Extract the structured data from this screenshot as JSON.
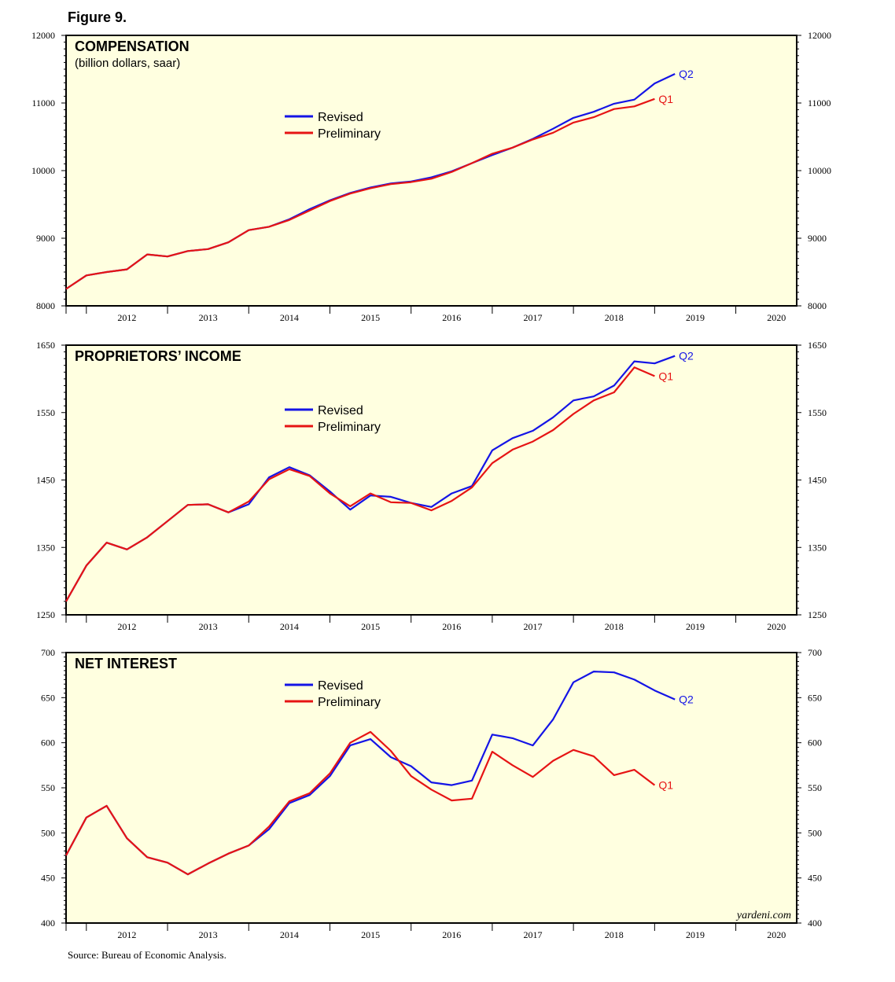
{
  "figure_title": "Figure 9.",
  "source": "Source: Bureau of Economic Analysis.",
  "watermark": "yardeni.com",
  "colors": {
    "revised": "#1414e6",
    "preliminary": "#e61414",
    "panel_bg": "#ffffe0"
  },
  "chart_data": [
    {
      "type": "line",
      "title": "COMPENSATION",
      "subtitle": "(billion dollars, saar)",
      "ylim": [
        8000,
        12000
      ],
      "yticks": [
        8000,
        9000,
        10000,
        11000,
        12000
      ],
      "x_range": [
        2011.75,
        2020.75
      ],
      "xtick_labels": [
        "2012",
        "2013",
        "2014",
        "2015",
        "2016",
        "2017",
        "2018",
        "2019",
        "2020"
      ],
      "legend": [
        "Revised",
        "Preliminary"
      ],
      "series": [
        {
          "name": "Revised",
          "end_label": "Q2",
          "x": [
            2011.75,
            2012,
            2012.25,
            2012.5,
            2012.75,
            2013,
            2013.25,
            2013.5,
            2013.75,
            2014,
            2014.25,
            2014.5,
            2014.75,
            2015,
            2015.25,
            2015.5,
            2015.75,
            2016,
            2016.25,
            2016.5,
            2016.75,
            2017,
            2017.25,
            2017.5,
            2017.75,
            2018,
            2018.25,
            2018.5,
            2018.75,
            2019,
            2019.25
          ],
          "values": [
            8250,
            8450,
            8500,
            8540,
            8760,
            8730,
            8810,
            8840,
            8940,
            9120,
            9170,
            9280,
            9430,
            9560,
            9670,
            9750,
            9810,
            9840,
            9900,
            9990,
            10110,
            10230,
            10340,
            10470,
            10620,
            10780,
            10870,
            10990,
            11050,
            11290,
            11430
          ]
        },
        {
          "name": "Preliminary",
          "end_label": "Q1",
          "x": [
            2011.75,
            2012,
            2012.25,
            2012.5,
            2012.75,
            2013,
            2013.25,
            2013.5,
            2013.75,
            2014,
            2014.25,
            2014.5,
            2014.75,
            2015,
            2015.25,
            2015.5,
            2015.75,
            2016,
            2016.25,
            2016.5,
            2016.75,
            2017,
            2017.25,
            2017.5,
            2017.75,
            2018,
            2018.25,
            2018.5,
            2018.75,
            2019
          ],
          "values": [
            8250,
            8450,
            8500,
            8540,
            8760,
            8730,
            8810,
            8840,
            8940,
            9120,
            9170,
            9270,
            9410,
            9550,
            9660,
            9740,
            9800,
            9830,
            9880,
            9980,
            10110,
            10250,
            10340,
            10460,
            10560,
            10710,
            10790,
            10910,
            10950,
            11060
          ]
        }
      ]
    },
    {
      "type": "line",
      "title": "PROPRIETORS’ INCOME",
      "subtitle": "",
      "ylim": [
        1250,
        1650
      ],
      "yticks": [
        1250,
        1350,
        1450,
        1550,
        1650
      ],
      "x_range": [
        2011.75,
        2020.75
      ],
      "xtick_labels": [
        "2012",
        "2013",
        "2014",
        "2015",
        "2016",
        "2017",
        "2018",
        "2019",
        "2020"
      ],
      "legend": [
        "Revised",
        "Preliminary"
      ],
      "series": [
        {
          "name": "Revised",
          "end_label": "Q2",
          "x": [
            2011.75,
            2012,
            2012.25,
            2012.5,
            2012.75,
            2013,
            2013.25,
            2013.5,
            2013.75,
            2014,
            2014.25,
            2014.5,
            2014.75,
            2015,
            2015.25,
            2015.5,
            2015.75,
            2016,
            2016.25,
            2016.5,
            2016.75,
            2017,
            2017.25,
            2017.5,
            2017.75,
            2018,
            2018.25,
            2018.5,
            2018.75,
            2019,
            2019.25
          ],
          "values": [
            1270,
            1323,
            1357,
            1347,
            1365,
            1389,
            1413,
            1414,
            1402,
            1414,
            1454,
            1469,
            1457,
            1433,
            1406,
            1427,
            1425,
            1416,
            1410,
            1430,
            1441,
            1494,
            1512,
            1523,
            1543,
            1568,
            1574,
            1590,
            1626,
            1623,
            1634
          ]
        },
        {
          "name": "Preliminary",
          "end_label": "Q1",
          "x": [
            2011.75,
            2012,
            2012.25,
            2012.5,
            2012.75,
            2013,
            2013.25,
            2013.5,
            2013.75,
            2014,
            2014.25,
            2014.5,
            2014.75,
            2015,
            2015.25,
            2015.5,
            2015.75,
            2016,
            2016.25,
            2016.5,
            2016.75,
            2017,
            2017.25,
            2017.5,
            2017.75,
            2018,
            2018.25,
            2018.5,
            2018.75,
            2019
          ],
          "values": [
            1270,
            1323,
            1357,
            1347,
            1365,
            1389,
            1413,
            1414,
            1402,
            1418,
            1451,
            1466,
            1456,
            1430,
            1411,
            1430,
            1417,
            1416,
            1405,
            1419,
            1439,
            1475,
            1495,
            1507,
            1524,
            1548,
            1568,
            1580,
            1617,
            1604
          ]
        }
      ]
    },
    {
      "type": "line",
      "title": "NET INTEREST",
      "subtitle": "",
      "ylim": [
        400,
        700
      ],
      "yticks": [
        400,
        450,
        500,
        550,
        600,
        650,
        700
      ],
      "x_range": [
        2011.75,
        2020.75
      ],
      "xtick_labels": [
        "2012",
        "2013",
        "2014",
        "2015",
        "2016",
        "2017",
        "2018",
        "2019",
        "2020"
      ],
      "legend": [
        "Revised",
        "Preliminary"
      ],
      "series": [
        {
          "name": "Revised",
          "end_label": "Q2",
          "x": [
            2011.75,
            2012,
            2012.25,
            2012.5,
            2012.75,
            2013,
            2013.25,
            2013.5,
            2013.75,
            2014,
            2014.25,
            2014.5,
            2014.75,
            2015,
            2015.25,
            2015.5,
            2015.75,
            2016,
            2016.25,
            2016.5,
            2016.75,
            2017,
            2017.25,
            2017.5,
            2017.75,
            2018,
            2018.25,
            2018.5,
            2018.75,
            2019,
            2019.25
          ],
          "values": [
            475,
            517,
            530,
            494,
            473,
            467,
            454,
            466,
            477,
            486,
            504,
            533,
            542,
            563,
            597,
            604,
            584,
            574,
            556,
            553,
            558,
            609,
            605,
            597,
            626,
            667,
            679,
            678,
            670,
            658,
            648
          ]
        },
        {
          "name": "Preliminary",
          "end_label": "Q1",
          "x": [
            2011.75,
            2012,
            2012.25,
            2012.5,
            2012.75,
            2013,
            2013.25,
            2013.5,
            2013.75,
            2014,
            2014.25,
            2014.5,
            2014.75,
            2015,
            2015.25,
            2015.5,
            2015.75,
            2016,
            2016.25,
            2016.5,
            2016.75,
            2017,
            2017.25,
            2017.5,
            2017.75,
            2018,
            2018.25,
            2018.5,
            2018.75,
            2019
          ],
          "values": [
            475,
            517,
            530,
            494,
            473,
            467,
            454,
            466,
            477,
            486,
            507,
            535,
            544,
            566,
            600,
            612,
            591,
            563,
            548,
            536,
            538,
            590,
            575,
            562,
            580,
            592,
            585,
            564,
            570,
            553
          ]
        }
      ]
    }
  ]
}
